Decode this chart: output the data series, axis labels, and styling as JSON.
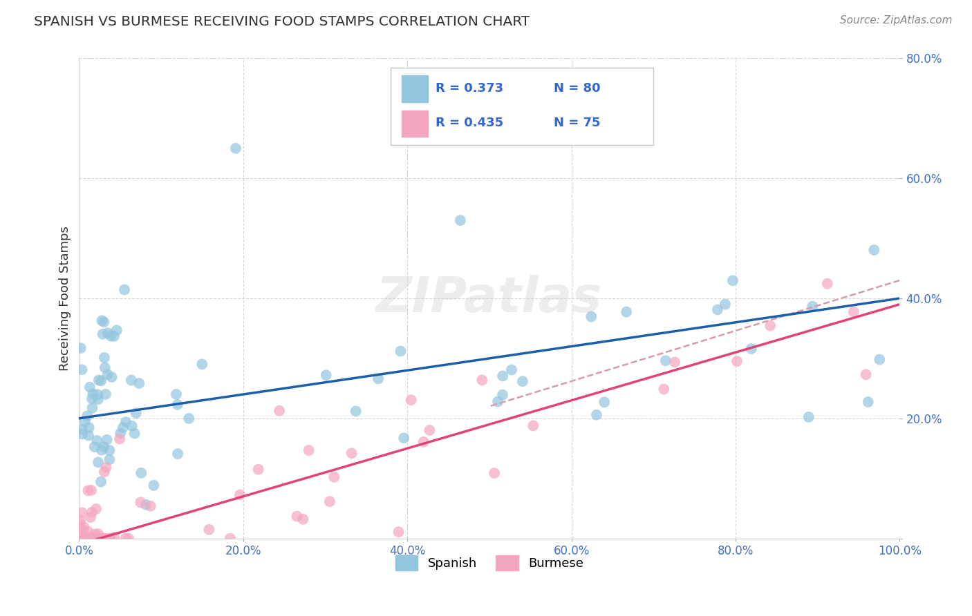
{
  "title": "SPANISH VS BURMESE RECEIVING FOOD STAMPS CORRELATION CHART",
  "source": "Source: ZipAtlas.com",
  "ylabel": "Receiving Food Stamps",
  "xlim": [
    0.0,
    100.0
  ],
  "ylim": [
    0.0,
    80.0
  ],
  "watermark": "ZIPatlas",
  "spanish_color": "#92c5de",
  "burmese_color": "#f4a6c0",
  "spanish_line_color": "#1a5fa8",
  "burmese_line_color": "#e0437a",
  "burmese_dash_color": "#d89aae",
  "spanish_R": 0.373,
  "spanish_N": 80,
  "burmese_R": 0.435,
  "burmese_N": 75,
  "background_color": "#ffffff",
  "grid_color": "#cccccc",
  "title_color": "#333333",
  "legend_label_color": "#3366cc",
  "axis_label_color": "#4472c4",
  "sp_intercept": 20.0,
  "sp_slope": 0.2,
  "bu_intercept": -2.0,
  "bu_slope": 0.4
}
